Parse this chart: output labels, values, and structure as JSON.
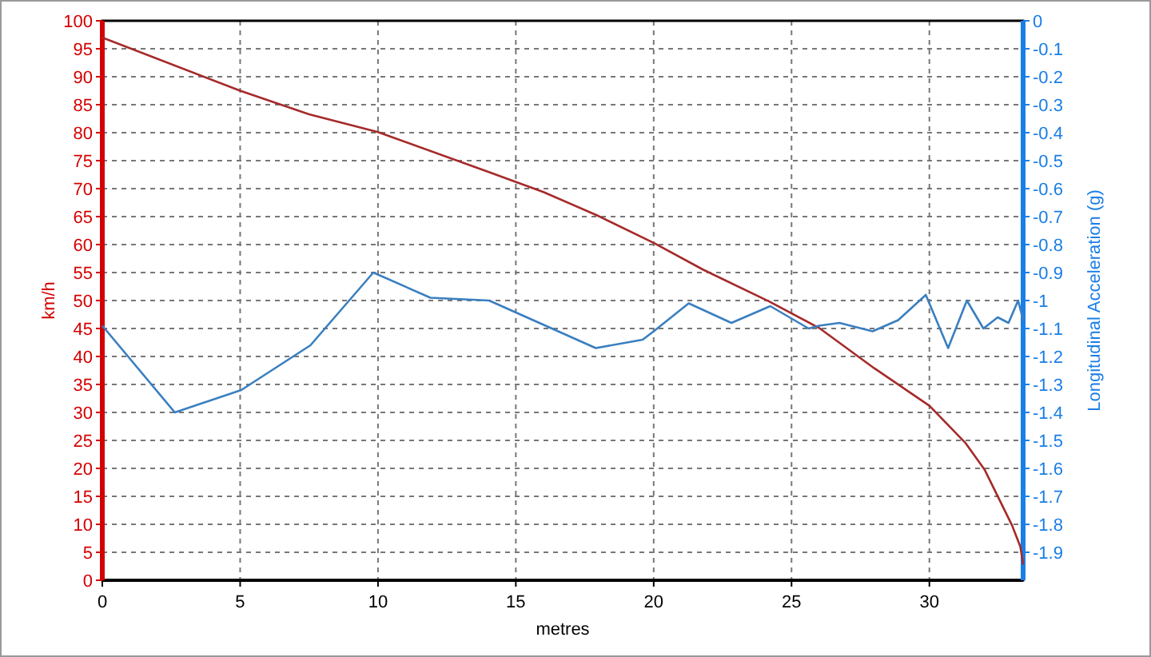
{
  "chart_data": {
    "type": "line",
    "xlabel": "metres",
    "ylabel": "km/h",
    "y2label": "Longitudinal Acceleration (g)",
    "xlim": [
      0,
      33.4
    ],
    "xticks": [
      0,
      5,
      10,
      15,
      20,
      25,
      30
    ],
    "ylim": [
      0,
      100
    ],
    "yticks": [
      0,
      5,
      10,
      15,
      20,
      25,
      30,
      35,
      40,
      45,
      50,
      55,
      60,
      65,
      70,
      75,
      80,
      85,
      90,
      95,
      100
    ],
    "y2lim": [
      -2,
      0
    ],
    "y2ticks": [
      0,
      -0.1,
      -0.2,
      -0.3,
      -0.4,
      -0.5,
      -0.6,
      -0.7,
      -0.8,
      -0.9,
      -1,
      -1.1,
      -1.2,
      -1.3,
      -1.4,
      -1.5,
      -1.6,
      -1.7,
      -1.8,
      -1.9
    ],
    "grid": true,
    "series": [
      {
        "color": "#a52a2a",
        "x": [
          0,
          5,
          7.5,
          10,
          14,
          16,
          18,
          20,
          21.8,
          24.2,
          26,
          28,
          30,
          31.3,
          32,
          33,
          33.3,
          33.4
        ],
        "values": [
          97,
          87.5,
          83.3,
          80.1,
          73,
          69.4,
          65.1,
          60.3,
          55.5,
          49.8,
          45.1,
          37.9,
          31.2,
          24.6,
          19.8,
          9.8,
          6,
          2.8
        ]
      },
      {
        "color": "#3a7fc0",
        "axis": "y2",
        "x": [
          0,
          2.63,
          5.04,
          7.55,
          9.83,
          11.9,
          14.03,
          17.9,
          19.6,
          20,
          21.27,
          22.82,
          24.23,
          25.62,
          26,
          26.74,
          27.94,
          28.87,
          29.87,
          30.68,
          31.36,
          31.96,
          32.48,
          32.87,
          33.22,
          33.4
        ],
        "values": [
          -1.09,
          -1.4,
          -1.32,
          -1.16,
          -0.9,
          -0.99,
          -1,
          -1.17,
          -1.14,
          -1.11,
          -1.01,
          -1.08,
          -1.02,
          -1.1,
          -1.09,
          -1.08,
          -1.11,
          -1.07,
          -0.98,
          -1.17,
          -1,
          -1.1,
          -1.06,
          -1.08,
          -1,
          -1.07
        ]
      }
    ]
  }
}
